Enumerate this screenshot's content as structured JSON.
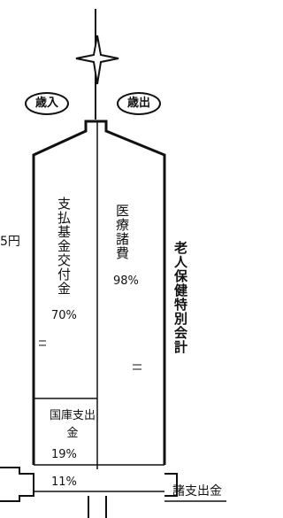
{
  "labels": {
    "left_cut": "5円",
    "revenue": "歳入",
    "expenditure": "歳出",
    "account": "老人保健特別会計"
  },
  "revenue": [
    {
      "label": "支払基金交付金",
      "share": "70%"
    },
    {
      "label": "国庫支出金",
      "share": "19%"
    },
    {
      "label": "",
      "share": "11%"
    }
  ],
  "expenditure": [
    {
      "label": "医療諸費",
      "share": "98%"
    },
    {
      "label": "諸支出金",
      "share": ""
    }
  ]
}
